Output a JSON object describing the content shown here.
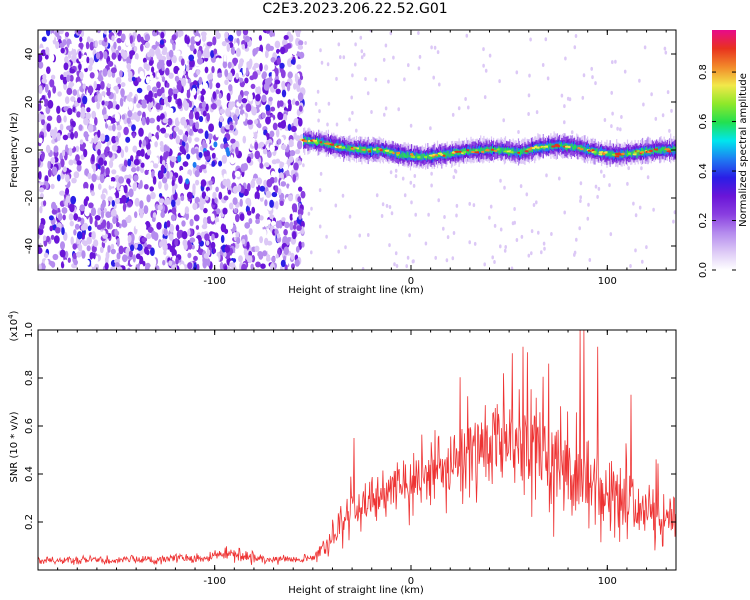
{
  "title": "C2E3.2023.206.22.52.G01",
  "colors": {
    "snr_line": "#ee3333",
    "colorscale": [
      "#ffffff",
      "#dcc8f6",
      "#b58cee",
      "#8a3fe0",
      "#6a15d8",
      "#2a1ee6",
      "#1e7cf2",
      "#00e6ee",
      "#22e050",
      "#8ee82a",
      "#f2e84a",
      "#f28a2a",
      "#e8321e",
      "#e80a8a"
    ]
  },
  "chart_data": [
    {
      "type": "heatmap",
      "xlabel": "Height of straight line (km)",
      "ylabel": "Frequency (Hz)",
      "xlim": [
        -190,
        135
      ],
      "ylim": [
        -50,
        50
      ],
      "xticks": [
        -100,
        0,
        100
      ],
      "yticks": [
        -40,
        -20,
        0,
        20,
        40
      ],
      "colorbar": {
        "label": "Normalized spectral amplitude",
        "range": [
          0,
          0.97
        ],
        "ticks": [
          0.0,
          0.2,
          0.4,
          0.6,
          0.8
        ]
      },
      "noise_region_x": [
        -190,
        -55
      ],
      "signal_region_x": [
        -55,
        135
      ],
      "signal_track": {
        "x": [
          -55,
          -45,
          -35,
          -25,
          -15,
          -5,
          5,
          15,
          25,
          35,
          45,
          55,
          65,
          75,
          85,
          95,
          105,
          115,
          125,
          135
        ],
        "frequency": [
          4,
          3,
          1,
          0,
          0,
          -2,
          -3,
          -2,
          -1,
          0,
          0,
          -1,
          1,
          2,
          1,
          -1,
          -2,
          -1,
          0,
          0
        ]
      }
    },
    {
      "type": "line",
      "xlabel": "Height of straight line (km)",
      "ylabel": "SNR (10 * v/v)",
      "y_scale_label": "(x10^4)",
      "xlim": [
        -190,
        135
      ],
      "ylim": [
        0,
        1.0
      ],
      "xticks": [
        -100,
        0,
        100
      ],
      "yticks": [
        0.2,
        0.4,
        0.6,
        0.8,
        1.0
      ],
      "series": [
        {
          "x": [
            -190,
            -180,
            -170,
            -160,
            -150,
            -140,
            -130,
            -120,
            -110,
            -100,
            -90,
            -80,
            -70,
            -60,
            -50,
            -45,
            -40,
            -35,
            -30,
            -25,
            -20,
            -15,
            -10,
            -5,
            0,
            5,
            10,
            15,
            20,
            25,
            30,
            35,
            40,
            45,
            50,
            55,
            60,
            65,
            70,
            75,
            80,
            85,
            90,
            95,
            100,
            105,
            110,
            115,
            120,
            125,
            130,
            135
          ],
          "values": [
            0.04,
            0.04,
            0.04,
            0.04,
            0.04,
            0.045,
            0.045,
            0.05,
            0.05,
            0.06,
            0.07,
            0.05,
            0.045,
            0.045,
            0.05,
            0.08,
            0.14,
            0.2,
            0.24,
            0.27,
            0.29,
            0.31,
            0.33,
            0.35,
            0.37,
            0.39,
            0.41,
            0.43,
            0.45,
            0.47,
            0.49,
            0.5,
            0.51,
            0.52,
            0.53,
            0.53,
            0.52,
            0.5,
            0.47,
            0.44,
            0.41,
            0.38,
            0.36,
            0.34,
            0.31,
            0.29,
            0.27,
            0.25,
            0.23,
            0.22,
            0.22,
            0.23
          ],
          "spread": [
            0.015,
            0.015,
            0.015,
            0.015,
            0.015,
            0.018,
            0.018,
            0.02,
            0.02,
            0.025,
            0.035,
            0.02,
            0.015,
            0.015,
            0.02,
            0.05,
            0.08,
            0.1,
            0.1,
            0.1,
            0.1,
            0.1,
            0.1,
            0.11,
            0.11,
            0.12,
            0.13,
            0.14,
            0.15,
            0.16,
            0.17,
            0.18,
            0.19,
            0.2,
            0.21,
            0.22,
            0.22,
            0.22,
            0.22,
            0.22,
            0.21,
            0.2,
            0.2,
            0.19,
            0.18,
            0.17,
            0.16,
            0.15,
            0.14,
            0.13,
            0.12,
            0.12
          ]
        }
      ],
      "spikes": [
        {
          "x": 86,
          "value": 1.0
        },
        {
          "x": 88,
          "value": 1.0
        },
        {
          "x": 95,
          "value": 0.93
        },
        {
          "x": 57,
          "value": 0.93
        },
        {
          "x": 70,
          "value": 0.86
        },
        {
          "x": 47,
          "value": 0.82
        },
        {
          "x": 112,
          "value": 0.73
        },
        {
          "x": -29,
          "value": 0.55
        }
      ]
    }
  ]
}
